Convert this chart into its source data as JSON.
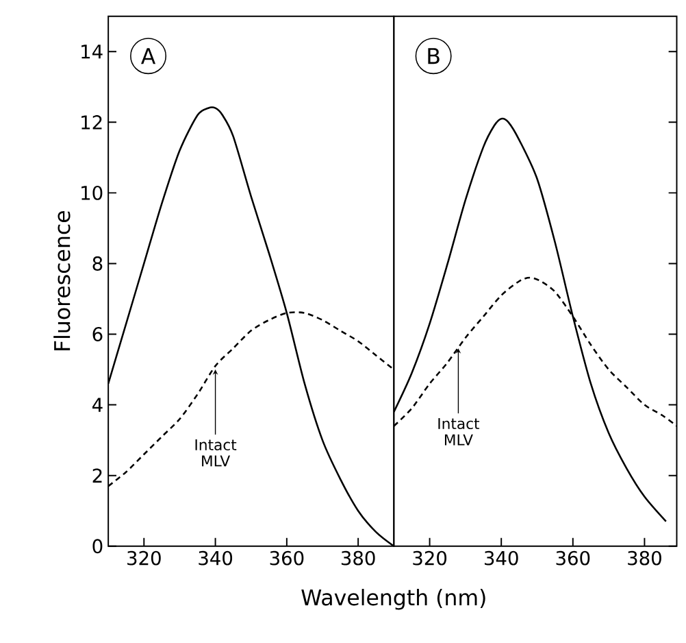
{
  "chart_data": [
    {
      "type": "line",
      "ylabel": "Fluorescence",
      "xlabel": "Wavelength (nm)",
      "annotations": [
        "A",
        {
          "text": "Intact MLV",
          "x": 340,
          "y": 5.0
        }
      ],
      "xlim": [
        310,
        390
      ],
      "xticks": [
        320,
        340,
        360,
        380
      ],
      "ylim": [
        0,
        15
      ],
      "yticks": [
        0,
        2,
        4,
        6,
        8,
        10,
        12,
        14
      ],
      "series": [
        {
          "color": "#000000",
          "line_style": "solid",
          "x": [
            310,
            315,
            320,
            325,
            330,
            335,
            338,
            340,
            342,
            345,
            350,
            355,
            360,
            365,
            370,
            375,
            380,
            385,
            390
          ],
          "values": [
            4.6,
            6.3,
            8.0,
            9.7,
            11.2,
            12.2,
            12.4,
            12.4,
            12.2,
            11.6,
            9.9,
            8.3,
            6.6,
            4.6,
            3.0,
            1.9,
            1.0,
            0.4,
            0.0
          ]
        },
        {
          "color": "#000000",
          "line_style": "dashed",
          "x": [
            310,
            315,
            320,
            325,
            330,
            335,
            340,
            345,
            350,
            355,
            360,
            365,
            370,
            375,
            380,
            385,
            390
          ],
          "values": [
            1.7,
            2.1,
            2.6,
            3.1,
            3.6,
            4.3,
            5.1,
            5.6,
            6.1,
            6.4,
            6.6,
            6.6,
            6.4,
            6.1,
            5.8,
            5.4,
            5.0
          ]
        }
      ]
    },
    {
      "type": "line",
      "annotations": [
        "B",
        {
          "text": "Intact MLV",
          "x": 328,
          "y": 5.6
        }
      ],
      "xlim": [
        310,
        389
      ],
      "xticks": [
        320,
        340,
        360,
        380
      ],
      "ylim": [
        0,
        15
      ],
      "yticks": [
        0,
        2,
        4,
        6,
        8,
        10,
        12,
        14
      ],
      "tick_labels": "x",
      "series": [
        {
          "color": "#000000",
          "line_style": "solid",
          "x": [
            310,
            315,
            320,
            325,
            330,
            335,
            338,
            340,
            342,
            345,
            350,
            355,
            360,
            365,
            370,
            375,
            380,
            386
          ],
          "values": [
            3.8,
            4.9,
            6.3,
            8.0,
            9.8,
            11.3,
            11.9,
            12.1,
            12.0,
            11.5,
            10.4,
            8.6,
            6.5,
            4.6,
            3.2,
            2.2,
            1.4,
            0.7
          ]
        },
        {
          "color": "#000000",
          "line_style": "dashed",
          "x": [
            310,
            315,
            320,
            325,
            330,
            335,
            340,
            345,
            348,
            351,
            355,
            360,
            365,
            370,
            375,
            380,
            385,
            389
          ],
          "values": [
            3.4,
            3.9,
            4.6,
            5.2,
            5.9,
            6.5,
            7.1,
            7.5,
            7.6,
            7.5,
            7.2,
            6.5,
            5.7,
            5.0,
            4.5,
            4.0,
            3.7,
            3.4
          ]
        }
      ]
    }
  ]
}
